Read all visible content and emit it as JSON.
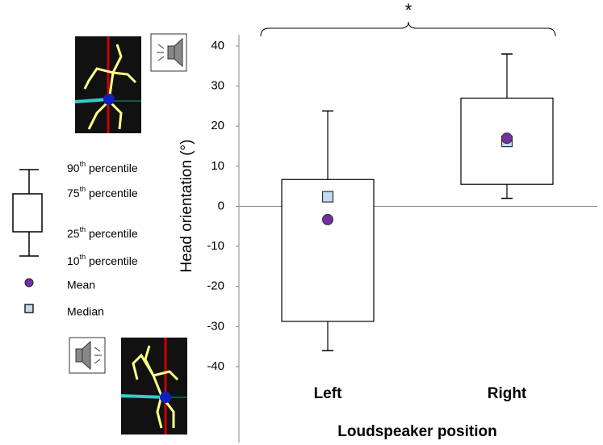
{
  "chart_data": {
    "type": "box",
    "y_label": "Head orientation (°)",
    "x_label": "Loudspeaker position",
    "significance": "*",
    "categories": [
      "Left",
      "Right"
    ],
    "series": {
      "whisker_high": [
        23.8,
        38
      ],
      "q3": [
        6.7,
        27
      ],
      "median": [
        2.4,
        16.2
      ],
      "q1": [
        -28.7,
        5.5
      ],
      "whisker_low": [
        -36,
        2
      ],
      "mean": [
        -3.3,
        17
      ]
    },
    "box_color": "#ffffff",
    "mean_color": "#7030a0",
    "median_color": "#c5d9f1",
    "ylim": [
      -40,
      40
    ],
    "yticks": [
      -40,
      -30,
      -20,
      -10,
      0,
      10,
      20,
      30,
      40
    ],
    "legend": [
      "90th percentile",
      "75th percentile",
      "25th percentile",
      "10th percentile",
      "Mean",
      "Median"
    ]
  }
}
